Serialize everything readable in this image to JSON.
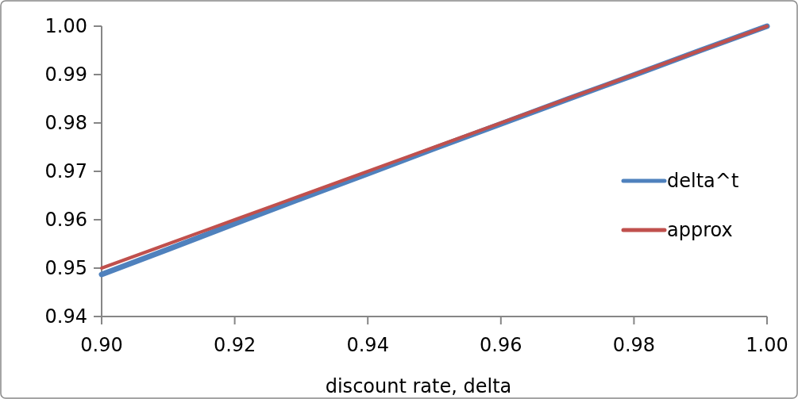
{
  "chart_data": {
    "type": "line",
    "xlabel": "discount rate, delta",
    "x": [
      0.9,
      0.91,
      0.92,
      0.93,
      0.94,
      0.95,
      0.96,
      0.97,
      0.98,
      0.99,
      1.0
    ],
    "series": [
      {
        "name": "delta^t",
        "color": "#4f81bd",
        "values": [
          0.9487,
          0.9539,
          0.9592,
          0.9644,
          0.9695,
          0.9747,
          0.9798,
          0.9849,
          0.9899,
          0.995,
          1.0
        ]
      },
      {
        "name": "approx",
        "color": "#c0504d",
        "values": [
          0.95,
          0.955,
          0.96,
          0.965,
          0.97,
          0.975,
          0.98,
          0.985,
          0.99,
          0.995,
          1.0
        ]
      }
    ],
    "xlim": [
      0.9,
      1.0
    ],
    "xticks": [
      {
        "value": 0.9,
        "label": "0.90"
      },
      0.92,
      0.94,
      0.96,
      0.98,
      {
        "value": 1.0,
        "label": "1.00"
      }
    ],
    "ylim": [
      0.94,
      1.0
    ],
    "yticks": [
      0.94,
      0.95,
      0.96,
      0.97,
      0.98,
      0.99,
      {
        "value": 1.0,
        "label": "1.00"
      }
    ],
    "grid": false,
    "legend": "right",
    "marker": "none",
    "line_style": "solid"
  }
}
